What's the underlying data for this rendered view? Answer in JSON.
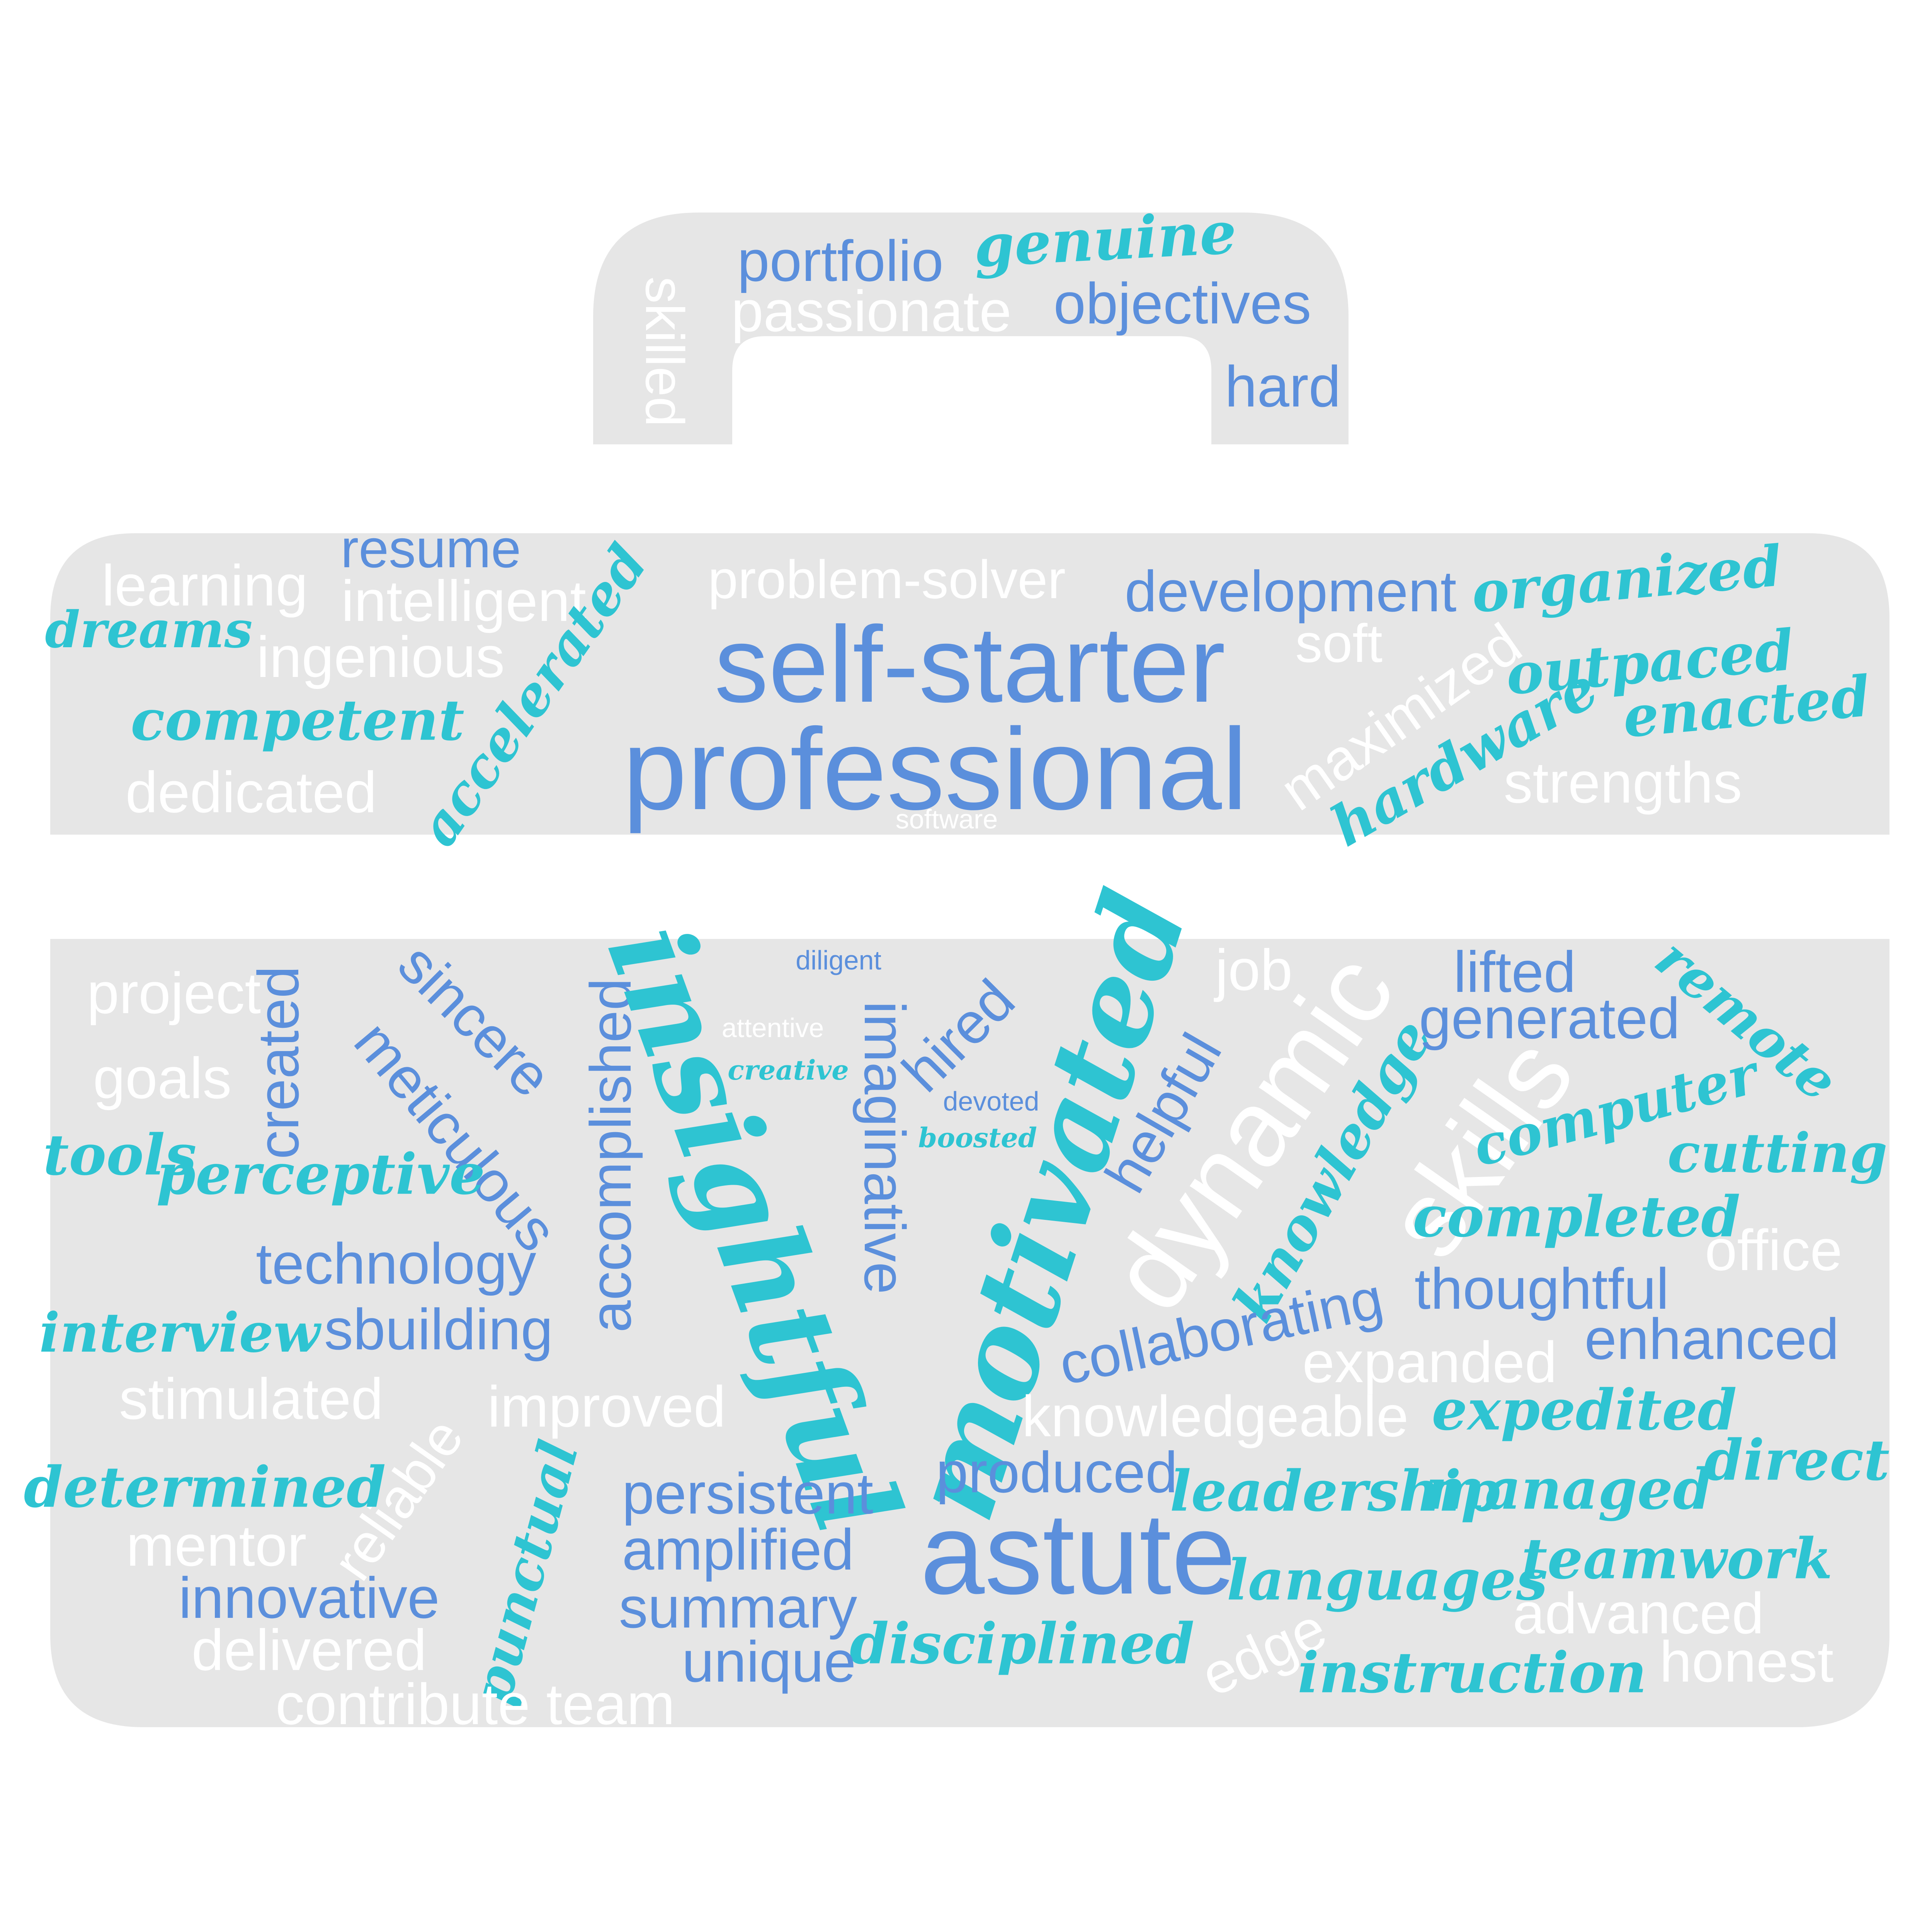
{
  "colors": {
    "background": "#ffffff",
    "case_fill": "#e6e6e6",
    "blue_text": "#5b8fdc",
    "white_text": "#ffffff",
    "teal_text": "#2ec4d2"
  },
  "words": [
    {
      "text": "portfolio",
      "color": "blue"
    },
    {
      "text": "passionate",
      "color": "white"
    },
    {
      "text": "genuine",
      "color": "teal"
    },
    {
      "text": "objectives",
      "color": "blue"
    },
    {
      "text": "skilled",
      "color": "white"
    },
    {
      "text": "hard",
      "color": "blue"
    },
    {
      "text": "resume",
      "color": "blue"
    },
    {
      "text": "learning",
      "color": "white"
    },
    {
      "text": "intelligent",
      "color": "white"
    },
    {
      "text": "dreams",
      "color": "teal"
    },
    {
      "text": "ingenious",
      "color": "white"
    },
    {
      "text": "competent",
      "color": "teal"
    },
    {
      "text": "accelerated",
      "color": "teal"
    },
    {
      "text": "dedicated",
      "color": "white"
    },
    {
      "text": "problem-solver",
      "color": "white"
    },
    {
      "text": "self-starter",
      "color": "blue"
    },
    {
      "text": "professional",
      "color": "blue"
    },
    {
      "text": "software",
      "color": "white"
    },
    {
      "text": "development",
      "color": "blue"
    },
    {
      "text": "soft",
      "color": "white"
    },
    {
      "text": "maximized",
      "color": "white"
    },
    {
      "text": "organized",
      "color": "teal"
    },
    {
      "text": "outpaced",
      "color": "teal"
    },
    {
      "text": "enacted",
      "color": "teal"
    },
    {
      "text": "hardware",
      "color": "teal"
    },
    {
      "text": "strengths",
      "color": "white"
    },
    {
      "text": "project",
      "color": "white"
    },
    {
      "text": "goals",
      "color": "white"
    },
    {
      "text": "created",
      "color": "blue"
    },
    {
      "text": "sincere",
      "color": "blue"
    },
    {
      "text": "meticulous",
      "color": "blue"
    },
    {
      "text": "accomplished",
      "color": "blue"
    },
    {
      "text": "tools",
      "color": "teal"
    },
    {
      "text": "perceptive",
      "color": "teal"
    },
    {
      "text": "technology",
      "color": "blue"
    },
    {
      "text": "interview",
      "color": "teal"
    },
    {
      "text": "sbuilding",
      "color": "blue"
    },
    {
      "text": "stimulated",
      "color": "white"
    },
    {
      "text": "reliable",
      "color": "white"
    },
    {
      "text": "improved",
      "color": "white"
    },
    {
      "text": "determined",
      "color": "teal"
    },
    {
      "text": "mentor",
      "color": "white"
    },
    {
      "text": "punctual",
      "color": "teal"
    },
    {
      "text": "innovative",
      "color": "blue"
    },
    {
      "text": "delivered",
      "color": "white"
    },
    {
      "text": "contribute team",
      "color": "white"
    },
    {
      "text": "insightful",
      "color": "teal"
    },
    {
      "text": "diligent",
      "color": "blue"
    },
    {
      "text": "attentive",
      "color": "white"
    },
    {
      "text": "creative",
      "color": "teal"
    },
    {
      "text": "imaginative",
      "color": "blue"
    },
    {
      "text": "hired",
      "color": "blue"
    },
    {
      "text": "devoted",
      "color": "blue"
    },
    {
      "text": "boosted",
      "color": "teal"
    },
    {
      "text": "motivated",
      "color": "teal"
    },
    {
      "text": "helpful",
      "color": "blue"
    },
    {
      "text": "job",
      "color": "white"
    },
    {
      "text": "dynamic",
      "color": "white"
    },
    {
      "text": "knowledge",
      "color": "teal"
    },
    {
      "text": "skills",
      "color": "white"
    },
    {
      "text": "lifted",
      "color": "blue"
    },
    {
      "text": "generated",
      "color": "blue"
    },
    {
      "text": "remote",
      "color": "teal"
    },
    {
      "text": "computer",
      "color": "teal"
    },
    {
      "text": "cutting",
      "color": "teal"
    },
    {
      "text": "completed",
      "color": "teal"
    },
    {
      "text": "office",
      "color": "white"
    },
    {
      "text": "collaborating",
      "color": "blue"
    },
    {
      "text": "thoughtful",
      "color": "blue"
    },
    {
      "text": "enhanced",
      "color": "blue"
    },
    {
      "text": "expanded",
      "color": "white"
    },
    {
      "text": "knowledgeable",
      "color": "white"
    },
    {
      "text": "expedited",
      "color": "teal"
    },
    {
      "text": "persistent",
      "color": "blue"
    },
    {
      "text": "produced",
      "color": "blue"
    },
    {
      "text": "leadership",
      "color": "teal"
    },
    {
      "text": "managed",
      "color": "teal"
    },
    {
      "text": "direct",
      "color": "teal"
    },
    {
      "text": "amplified",
      "color": "blue"
    },
    {
      "text": "astute",
      "color": "blue"
    },
    {
      "text": "languages",
      "color": "teal"
    },
    {
      "text": "teamwork",
      "color": "teal"
    },
    {
      "text": "summary",
      "color": "blue"
    },
    {
      "text": "disciplined",
      "color": "teal"
    },
    {
      "text": "advanced",
      "color": "white"
    },
    {
      "text": "unique",
      "color": "blue"
    },
    {
      "text": "edge",
      "color": "white"
    },
    {
      "text": "instruction",
      "color": "teal"
    },
    {
      "text": "honest",
      "color": "white"
    }
  ]
}
